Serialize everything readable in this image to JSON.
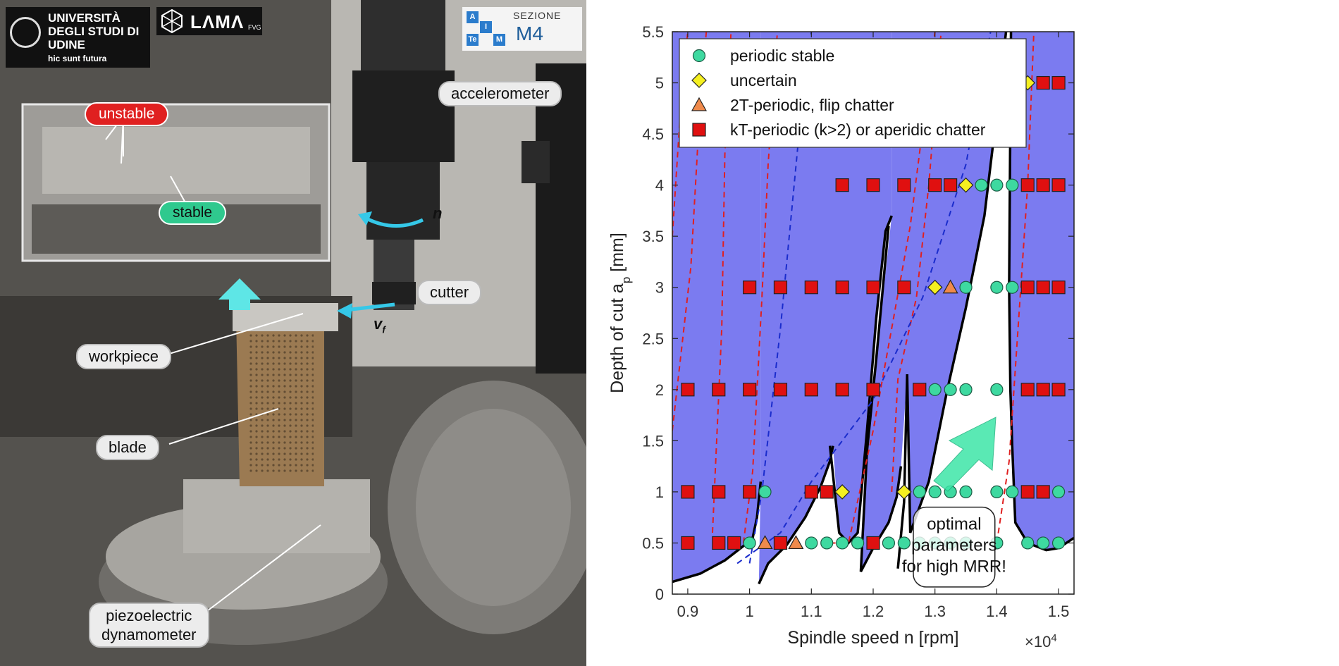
{
  "photo": {
    "logos": {
      "uniud_title": "UNIVERSITÀ DEGLI STUDI DI UDINE",
      "uniud_motto": "hic sunt futura",
      "lama_name": "LΛMΛ",
      "lama_sub": "FVG",
      "aitem_cells": [
        "A",
        "I",
        "Te",
        "M"
      ],
      "sezione": "SEZIONE",
      "m4": "M4"
    },
    "labels": {
      "unstable": "unstable",
      "stable": "stable",
      "accelerometer": "accelerometer",
      "n": "n",
      "cutter": "cutter",
      "vf": "v",
      "vf_sub": "f",
      "workpiece": "workpiece",
      "blade": "blade",
      "dynamometer_line1": "piezoelectric",
      "dynamometer_line2": "dynamometer"
    }
  },
  "chart_data": {
    "type": "scatter",
    "xlabel": "Spindle speed n [rpm]",
    "ylabel": "Depth of cut a",
    "ylabel_sub": "p",
    "ylabel_unit": " [mm]",
    "x_exponent_base": "×10",
    "x_exponent_power": "4",
    "xlim": [
      0.875,
      1.525
    ],
    "ylim": [
      0,
      5.5
    ],
    "xticks": [
      0.9,
      1,
      1.1,
      1.2,
      1.3,
      1.4,
      1.5
    ],
    "xtick_labels": [
      "0.9",
      "1",
      "1.1",
      "1.2",
      "1.3",
      "1.4",
      "1.5"
    ],
    "yticks": [
      0,
      0.5,
      1,
      1.5,
      2,
      2.5,
      3,
      3.5,
      4,
      4.5,
      5,
      5.5
    ],
    "ytick_labels": [
      "0",
      "0.5",
      "1",
      "1.5",
      "2",
      "2.5",
      "3",
      "3.5",
      "4",
      "4.5",
      "5",
      "5.5"
    ],
    "legend_position": "top-left",
    "unstable_region_color": "#7b7bf0",
    "stability_boundary": {
      "lobe_bottom_pieces": [
        [
          [
            0.875,
            0.12
          ],
          [
            0.92,
            0.2
          ],
          [
            0.96,
            0.33
          ],
          [
            0.99,
            0.47
          ],
          [
            1.005,
            0.55
          ],
          [
            1.012,
            0.75
          ],
          [
            1.018,
            1.1
          ]
        ],
        [
          [
            1.015,
            0.1
          ],
          [
            1.03,
            0.3
          ],
          [
            1.06,
            0.48
          ],
          [
            1.09,
            0.75
          ],
          [
            1.115,
            1.05
          ],
          [
            1.13,
            1.3
          ],
          [
            1.135,
            1.45
          ]
        ],
        [
          [
            1.13,
            1.45
          ],
          [
            1.145,
            0.6
          ],
          [
            1.16,
            0.5
          ],
          [
            1.175,
            0.6
          ],
          [
            1.19,
            1.6
          ],
          [
            1.205,
            2.7
          ],
          [
            1.22,
            3.55
          ],
          [
            1.23,
            3.7
          ]
        ],
        [
          [
            1.225,
            3.6
          ],
          [
            1.205,
            2.3
          ],
          [
            1.19,
            1.4
          ],
          [
            1.18,
            0.22
          ],
          [
            1.2,
            0.45
          ],
          [
            1.225,
            0.7
          ],
          [
            1.238,
            0.95
          ],
          [
            1.245,
            1.25
          ]
        ],
        [
          [
            1.24,
            0.25
          ],
          [
            1.25,
            0.9
          ],
          [
            1.255,
            2.15
          ],
          [
            1.26,
            0.6
          ],
          [
            1.29,
            1.1
          ],
          [
            1.32,
            2.0
          ],
          [
            1.35,
            2.8
          ],
          [
            1.38,
            3.7
          ],
          [
            1.4,
            4.7
          ],
          [
            1.415,
            5.5
          ]
        ],
        [
          [
            1.423,
            5.5
          ],
          [
            1.42,
            3.0
          ],
          [
            1.422,
            2.0
          ],
          [
            1.425,
            1.45
          ],
          [
            1.43,
            0.7
          ],
          [
            1.45,
            0.5
          ],
          [
            1.48,
            0.43
          ],
          [
            1.5,
            0.45
          ],
          [
            1.525,
            0.55
          ]
        ]
      ]
    },
    "series": [
      {
        "name": "periodic stable",
        "marker": "circle",
        "color": "#3ed9a0",
        "points": [
          [
            1.0,
            0.5
          ],
          [
            1.025,
            1.0
          ],
          [
            1.1,
            0.5
          ],
          [
            1.125,
            0.5
          ],
          [
            1.15,
            0.5
          ],
          [
            1.175,
            0.5
          ],
          [
            1.225,
            0.5
          ],
          [
            1.25,
            0.5
          ],
          [
            1.275,
            0.5
          ],
          [
            1.3,
            0.5
          ],
          [
            1.325,
            0.5
          ],
          [
            1.35,
            0.5
          ],
          [
            1.4,
            0.5
          ],
          [
            1.45,
            0.5
          ],
          [
            1.475,
            0.5
          ],
          [
            1.5,
            0.5
          ],
          [
            1.275,
            1.0
          ],
          [
            1.3,
            1.0
          ],
          [
            1.325,
            1.0
          ],
          [
            1.35,
            1.0
          ],
          [
            1.4,
            1.0
          ],
          [
            1.425,
            1.0
          ],
          [
            1.5,
            1.0
          ],
          [
            1.3,
            2.0
          ],
          [
            1.325,
            2.0
          ],
          [
            1.35,
            2.0
          ],
          [
            1.4,
            2.0
          ],
          [
            1.35,
            3.0
          ],
          [
            1.4,
            3.0
          ],
          [
            1.425,
            3.0
          ],
          [
            1.375,
            4.0
          ],
          [
            1.4,
            4.0
          ],
          [
            1.425,
            4.0
          ],
          [
            1.4,
            5.0
          ],
          [
            1.425,
            5.0
          ]
        ]
      },
      {
        "name": "uncertain",
        "marker": "diamond",
        "color": "#f5f020",
        "points": [
          [
            1.15,
            1.0
          ],
          [
            1.25,
            1.0
          ],
          [
            1.3,
            3.0
          ],
          [
            1.35,
            4.0
          ],
          [
            1.35,
            5.0
          ],
          [
            1.45,
            5.0
          ]
        ]
      },
      {
        "name": "2T-periodic, flip chatter",
        "marker": "triangle",
        "color": "#f08a4b",
        "points": [
          [
            1.025,
            0.5
          ],
          [
            1.075,
            0.5
          ],
          [
            1.325,
            3.0
          ]
        ]
      },
      {
        "name": "kT-periodic (k>2) or aperidic chatter",
        "marker": "square",
        "color": "#e01010",
        "points": [
          [
            0.9,
            0.5
          ],
          [
            0.95,
            0.5
          ],
          [
            0.975,
            0.5
          ],
          [
            1.05,
            0.5
          ],
          [
            1.2,
            0.5
          ],
          [
            0.9,
            1.0
          ],
          [
            0.95,
            1.0
          ],
          [
            1.0,
            1.0
          ],
          [
            1.1,
            1.0
          ],
          [
            1.125,
            1.0
          ],
          [
            1.45,
            1.0
          ],
          [
            1.475,
            1.0
          ],
          [
            0.9,
            2.0
          ],
          [
            0.95,
            2.0
          ],
          [
            1.0,
            2.0
          ],
          [
            1.05,
            2.0
          ],
          [
            1.1,
            2.0
          ],
          [
            1.15,
            2.0
          ],
          [
            1.2,
            2.0
          ],
          [
            1.275,
            2.0
          ],
          [
            1.45,
            2.0
          ],
          [
            1.475,
            2.0
          ],
          [
            1.5,
            2.0
          ],
          [
            1.0,
            3.0
          ],
          [
            1.05,
            3.0
          ],
          [
            1.1,
            3.0
          ],
          [
            1.15,
            3.0
          ],
          [
            1.2,
            3.0
          ],
          [
            1.25,
            3.0
          ],
          [
            1.45,
            3.0
          ],
          [
            1.475,
            3.0
          ],
          [
            1.5,
            3.0
          ],
          [
            1.15,
            4.0
          ],
          [
            1.2,
            4.0
          ],
          [
            1.25,
            4.0
          ],
          [
            1.3,
            4.0
          ],
          [
            1.325,
            4.0
          ],
          [
            1.45,
            4.0
          ],
          [
            1.475,
            4.0
          ],
          [
            1.5,
            4.0
          ],
          [
            1.3,
            5.0
          ],
          [
            1.325,
            5.0
          ],
          [
            1.375,
            5.0
          ],
          [
            1.475,
            5.0
          ],
          [
            1.5,
            5.0
          ]
        ]
      }
    ],
    "annotation": {
      "line1": "optimal",
      "line2": "parameters",
      "line3": "for high MRR!"
    }
  }
}
